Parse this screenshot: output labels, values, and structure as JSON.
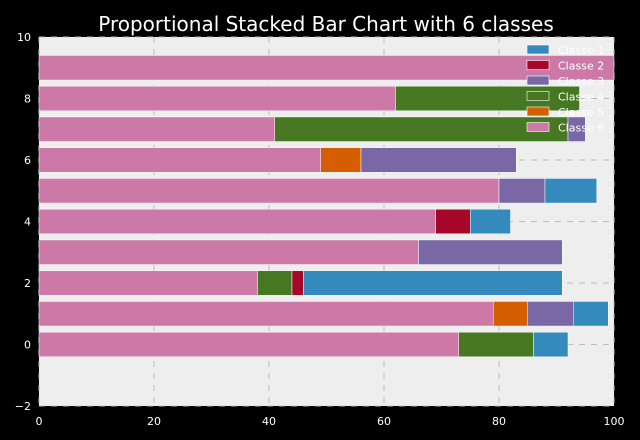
{
  "colors": {
    "background": "#000000",
    "plot_bg": "#eeeeee",
    "grid": "#bcbcbc",
    "text": "#ffffff",
    "bar_edge": "#ffffff"
  },
  "chart_data": {
    "type": "bar",
    "orientation": "horizontal",
    "stacked": true,
    "title": "Proportional Stacked Bar Chart with 6 classes",
    "xlabel": "",
    "ylabel": "",
    "xlim": [
      0,
      100
    ],
    "ylim": [
      -2,
      10
    ],
    "xticks": [
      0,
      20,
      40,
      60,
      80,
      100
    ],
    "yticks": [
      -2,
      0,
      2,
      4,
      6,
      8,
      10
    ],
    "grid": true,
    "legend": "top-right",
    "categories": [
      0,
      1,
      2,
      3,
      4,
      5,
      6,
      7,
      8,
      9
    ],
    "series": [
      {
        "name": "Classe 6",
        "color": "#cc79a7",
        "values": [
          73,
          79,
          38,
          66,
          69,
          80,
          49,
          41,
          62,
          100
        ]
      },
      {
        "name": "Classe 5",
        "color": "#d55e00",
        "values": [
          0,
          6,
          0,
          0,
          0,
          0,
          7,
          0,
          0,
          0
        ]
      },
      {
        "name": "Classe 4",
        "color": "#467821",
        "values": [
          13,
          0,
          6,
          0,
          0,
          0,
          0,
          51,
          32,
          0
        ]
      },
      {
        "name": "Classe 3",
        "color": "#7a68a6",
        "values": [
          0,
          8,
          0,
          25,
          0,
          8,
          27,
          3,
          0,
          0
        ]
      },
      {
        "name": "Classe 2",
        "color": "#a60628",
        "values": [
          0,
          0,
          2,
          0,
          6,
          0,
          0,
          0,
          0,
          0
        ]
      },
      {
        "name": "Classe 1",
        "color": "#348abd",
        "values": [
          6,
          6,
          45,
          0,
          7,
          9,
          0,
          0,
          0,
          0
        ]
      }
    ],
    "legend_order": [
      "Classe 1",
      "Classe 2",
      "Classe 3",
      "Classe 4",
      "Classe 5",
      "Classe 6"
    ]
  }
}
